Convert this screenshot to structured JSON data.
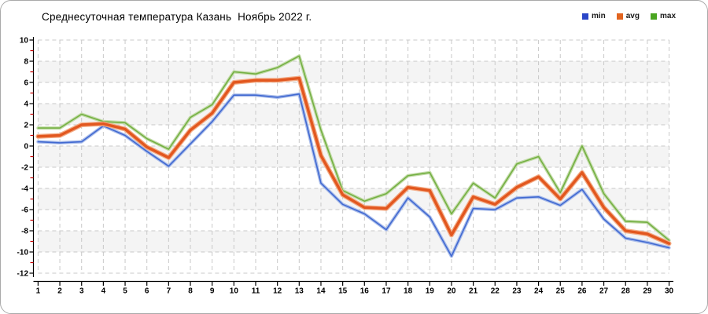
{
  "title": "Среднесуточная температура Казань  Ноябрь 2022 г.",
  "legend": [
    {
      "label": "min",
      "color": "#2a46c8"
    },
    {
      "label": "avg",
      "color": "#e2641f"
    },
    {
      "label": "max",
      "color": "#4aa521"
    }
  ],
  "chart_data": {
    "type": "line",
    "title": "Среднесуточная температура Казань  Ноябрь 2022 г.",
    "xlabel": "",
    "ylabel": "",
    "x": [
      1,
      2,
      3,
      4,
      5,
      6,
      7,
      8,
      9,
      10,
      11,
      12,
      13,
      14,
      15,
      16,
      17,
      18,
      19,
      20,
      21,
      22,
      23,
      24,
      25,
      26,
      27,
      28,
      29,
      30
    ],
    "xtick_labels": [
      "1",
      "2",
      "3",
      "4",
      "5",
      "6",
      "7",
      "8",
      "9",
      "10",
      "11",
      "12",
      "13",
      "14",
      "15",
      "16",
      "17",
      "18",
      "19",
      "20",
      "21",
      "22",
      "23",
      "24",
      "25",
      "26",
      "27",
      "28",
      "29",
      "30"
    ],
    "ylim": [
      -12,
      10
    ],
    "ytick_step": 2,
    "ytick_labels": [
      "10",
      "8",
      "6",
      "4",
      "2",
      "0",
      "-2",
      "-4",
      "-6",
      "-8",
      "-10",
      "-12"
    ],
    "grid": "dashed-gray-both-axes",
    "minor_ytick_color": "#cc0000",
    "band_fill": "#f4f4f4",
    "grid_color": "#c9c9c9",
    "legend_position": "top-right",
    "series": [
      {
        "name": "min",
        "color": "#4169d1",
        "halo": "#aabdea",
        "width": 1.6,
        "values": [
          0.4,
          0.3,
          0.4,
          1.9,
          1.0,
          -0.5,
          -1.9,
          0.2,
          2.3,
          4.8,
          4.8,
          4.6,
          4.9,
          -3.5,
          -5.5,
          -6.4,
          -7.9,
          -4.9,
          -6.7,
          -10.4,
          -5.9,
          -6.0,
          -4.9,
          -4.8,
          -5.6,
          -4.1,
          -6.9,
          -8.7,
          -9.1,
          -9.6
        ]
      },
      {
        "name": "avg",
        "color": "#e2571f",
        "halo": "#f3ab85",
        "width": 3.4,
        "values": [
          0.9,
          1.0,
          2.0,
          2.1,
          1.6,
          -0.1,
          -1.1,
          1.5,
          3.1,
          6.0,
          6.2,
          6.2,
          6.4,
          -0.9,
          -4.6,
          -5.8,
          -5.9,
          -3.9,
          -4.2,
          -8.4,
          -4.8,
          -5.5,
          -3.9,
          -2.9,
          -5.0,
          -2.5,
          -5.8,
          -8.0,
          -8.3,
          -9.2
        ]
      },
      {
        "name": "max",
        "color": "#74b043",
        "halo": "#c4dcaa",
        "width": 1.6,
        "values": [
          1.7,
          1.7,
          3.0,
          2.3,
          2.2,
          0.7,
          -0.3,
          2.7,
          3.9,
          7.0,
          6.8,
          7.4,
          8.5,
          1.5,
          -4.2,
          -5.2,
          -4.5,
          -2.8,
          -2.5,
          -6.4,
          -3.5,
          -4.9,
          -1.7,
          -1.0,
          -4.4,
          0.0,
          -4.5,
          -7.1,
          -7.2,
          -8.9
        ]
      }
    ]
  }
}
